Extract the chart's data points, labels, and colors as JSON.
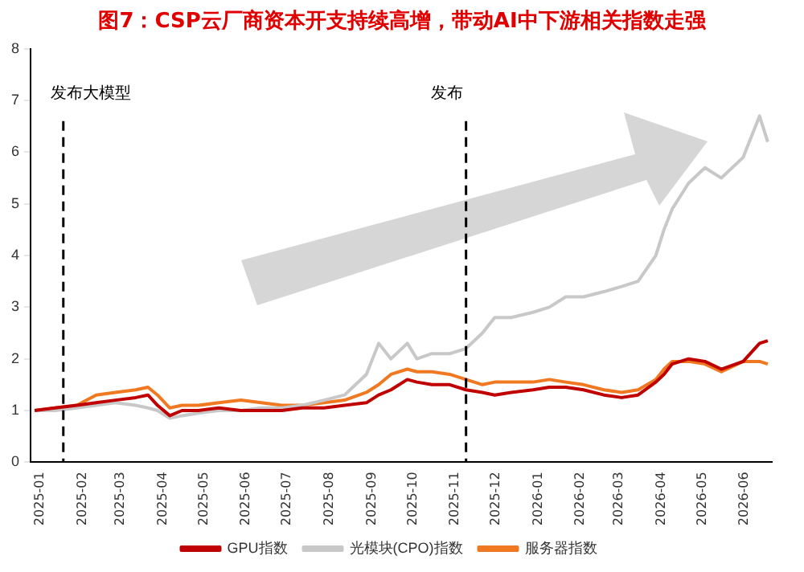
{
  "chart_data": {
    "type": "line",
    "title": "图7：CSP云厂商资本开支持续高增，带动AI中下游相关指数走强",
    "xlim": [
      "2024-12-29",
      "2026-06-25"
    ],
    "xticks": [
      "2025-01",
      "2025-02",
      "2025-03",
      "2025-04",
      "2025-05",
      "2025-06",
      "2025-07",
      "2025-08",
      "2025-09",
      "2025-10",
      "2025-11",
      "2025-12",
      "2026-01",
      "2026-02",
      "2026-03",
      "2026-04",
      "2026-05",
      "2026-06"
    ],
    "ylim": [
      0,
      8
    ],
    "yticks": [
      0,
      1,
      2,
      3,
      4,
      5,
      6,
      7,
      8
    ],
    "x": [
      "2025-01-01",
      "2025-01-16",
      "2025-02-01",
      "2025-02-15",
      "2025-03-01",
      "2025-03-16",
      "2025-03-25",
      "2025-04-01",
      "2025-04-10",
      "2025-04-19",
      "2025-05-01",
      "2025-05-16",
      "2025-06-01",
      "2025-06-16",
      "2025-07-01",
      "2025-07-16",
      "2025-08-01",
      "2025-08-16",
      "2025-09-01",
      "2025-09-10",
      "2025-09-19",
      "2025-10-01",
      "2025-10-08",
      "2025-10-19",
      "2025-11-01",
      "2025-11-13",
      "2025-11-25",
      "2025-12-04",
      "2025-12-16",
      "2026-01-01",
      "2026-01-13",
      "2026-01-25",
      "2026-02-07",
      "2026-02-22",
      "2026-03-07",
      "2026-03-19",
      "2026-04-01",
      "2026-04-07",
      "2026-04-13",
      "2026-04-25",
      "2026-05-07",
      "2026-05-19",
      "2026-06-04",
      "2026-06-16",
      "2026-06-22"
    ],
    "series": [
      {
        "name": "GPU指数",
        "color": "#c00000",
        "values": [
          1.0,
          1.05,
          1.1,
          1.15,
          1.2,
          1.25,
          1.3,
          1.1,
          0.9,
          1.0,
          1.0,
          1.05,
          1.0,
          1.0,
          1.0,
          1.05,
          1.05,
          1.1,
          1.15,
          1.3,
          1.4,
          1.6,
          1.55,
          1.5,
          1.5,
          1.4,
          1.35,
          1.3,
          1.35,
          1.4,
          1.45,
          1.45,
          1.4,
          1.3,
          1.25,
          1.3,
          1.55,
          1.7,
          1.9,
          2.0,
          1.95,
          1.8,
          1.95,
          2.3,
          2.35
        ]
      },
      {
        "name": "光模块(CPO)指数",
        "color": "#c8c8c8",
        "values": [
          1.0,
          1.0,
          1.05,
          1.1,
          1.15,
          1.1,
          1.05,
          1.0,
          0.85,
          0.9,
          0.95,
          1.0,
          1.0,
          1.05,
          1.05,
          1.1,
          1.2,
          1.3,
          1.7,
          2.3,
          2.0,
          2.3,
          2.0,
          2.1,
          2.1,
          2.2,
          2.5,
          2.8,
          2.8,
          2.9,
          3.0,
          3.2,
          3.2,
          3.3,
          3.4,
          3.5,
          4.0,
          4.5,
          4.9,
          5.4,
          5.7,
          5.5,
          5.9,
          6.7,
          6.2
        ]
      },
      {
        "name": "服务器指数",
        "color": "#f07820",
        "values": [
          1.0,
          1.05,
          1.1,
          1.3,
          1.35,
          1.4,
          1.45,
          1.3,
          1.05,
          1.1,
          1.1,
          1.15,
          1.2,
          1.15,
          1.1,
          1.1,
          1.15,
          1.2,
          1.35,
          1.5,
          1.7,
          1.8,
          1.75,
          1.75,
          1.7,
          1.6,
          1.5,
          1.55,
          1.55,
          1.55,
          1.6,
          1.55,
          1.5,
          1.4,
          1.35,
          1.4,
          1.6,
          1.8,
          1.95,
          1.95,
          1.9,
          1.75,
          1.95,
          1.95,
          1.9
        ]
      }
    ],
    "ref_lines": [
      {
        "axis": "x",
        "value": "2025-01-22",
        "label": "发布大模型"
      },
      {
        "axis": "x",
        "value": "2025-11-13",
        "label": "发布"
      }
    ],
    "legend": "bottom",
    "grid": false,
    "marker": "none",
    "line_style": "solid"
  }
}
